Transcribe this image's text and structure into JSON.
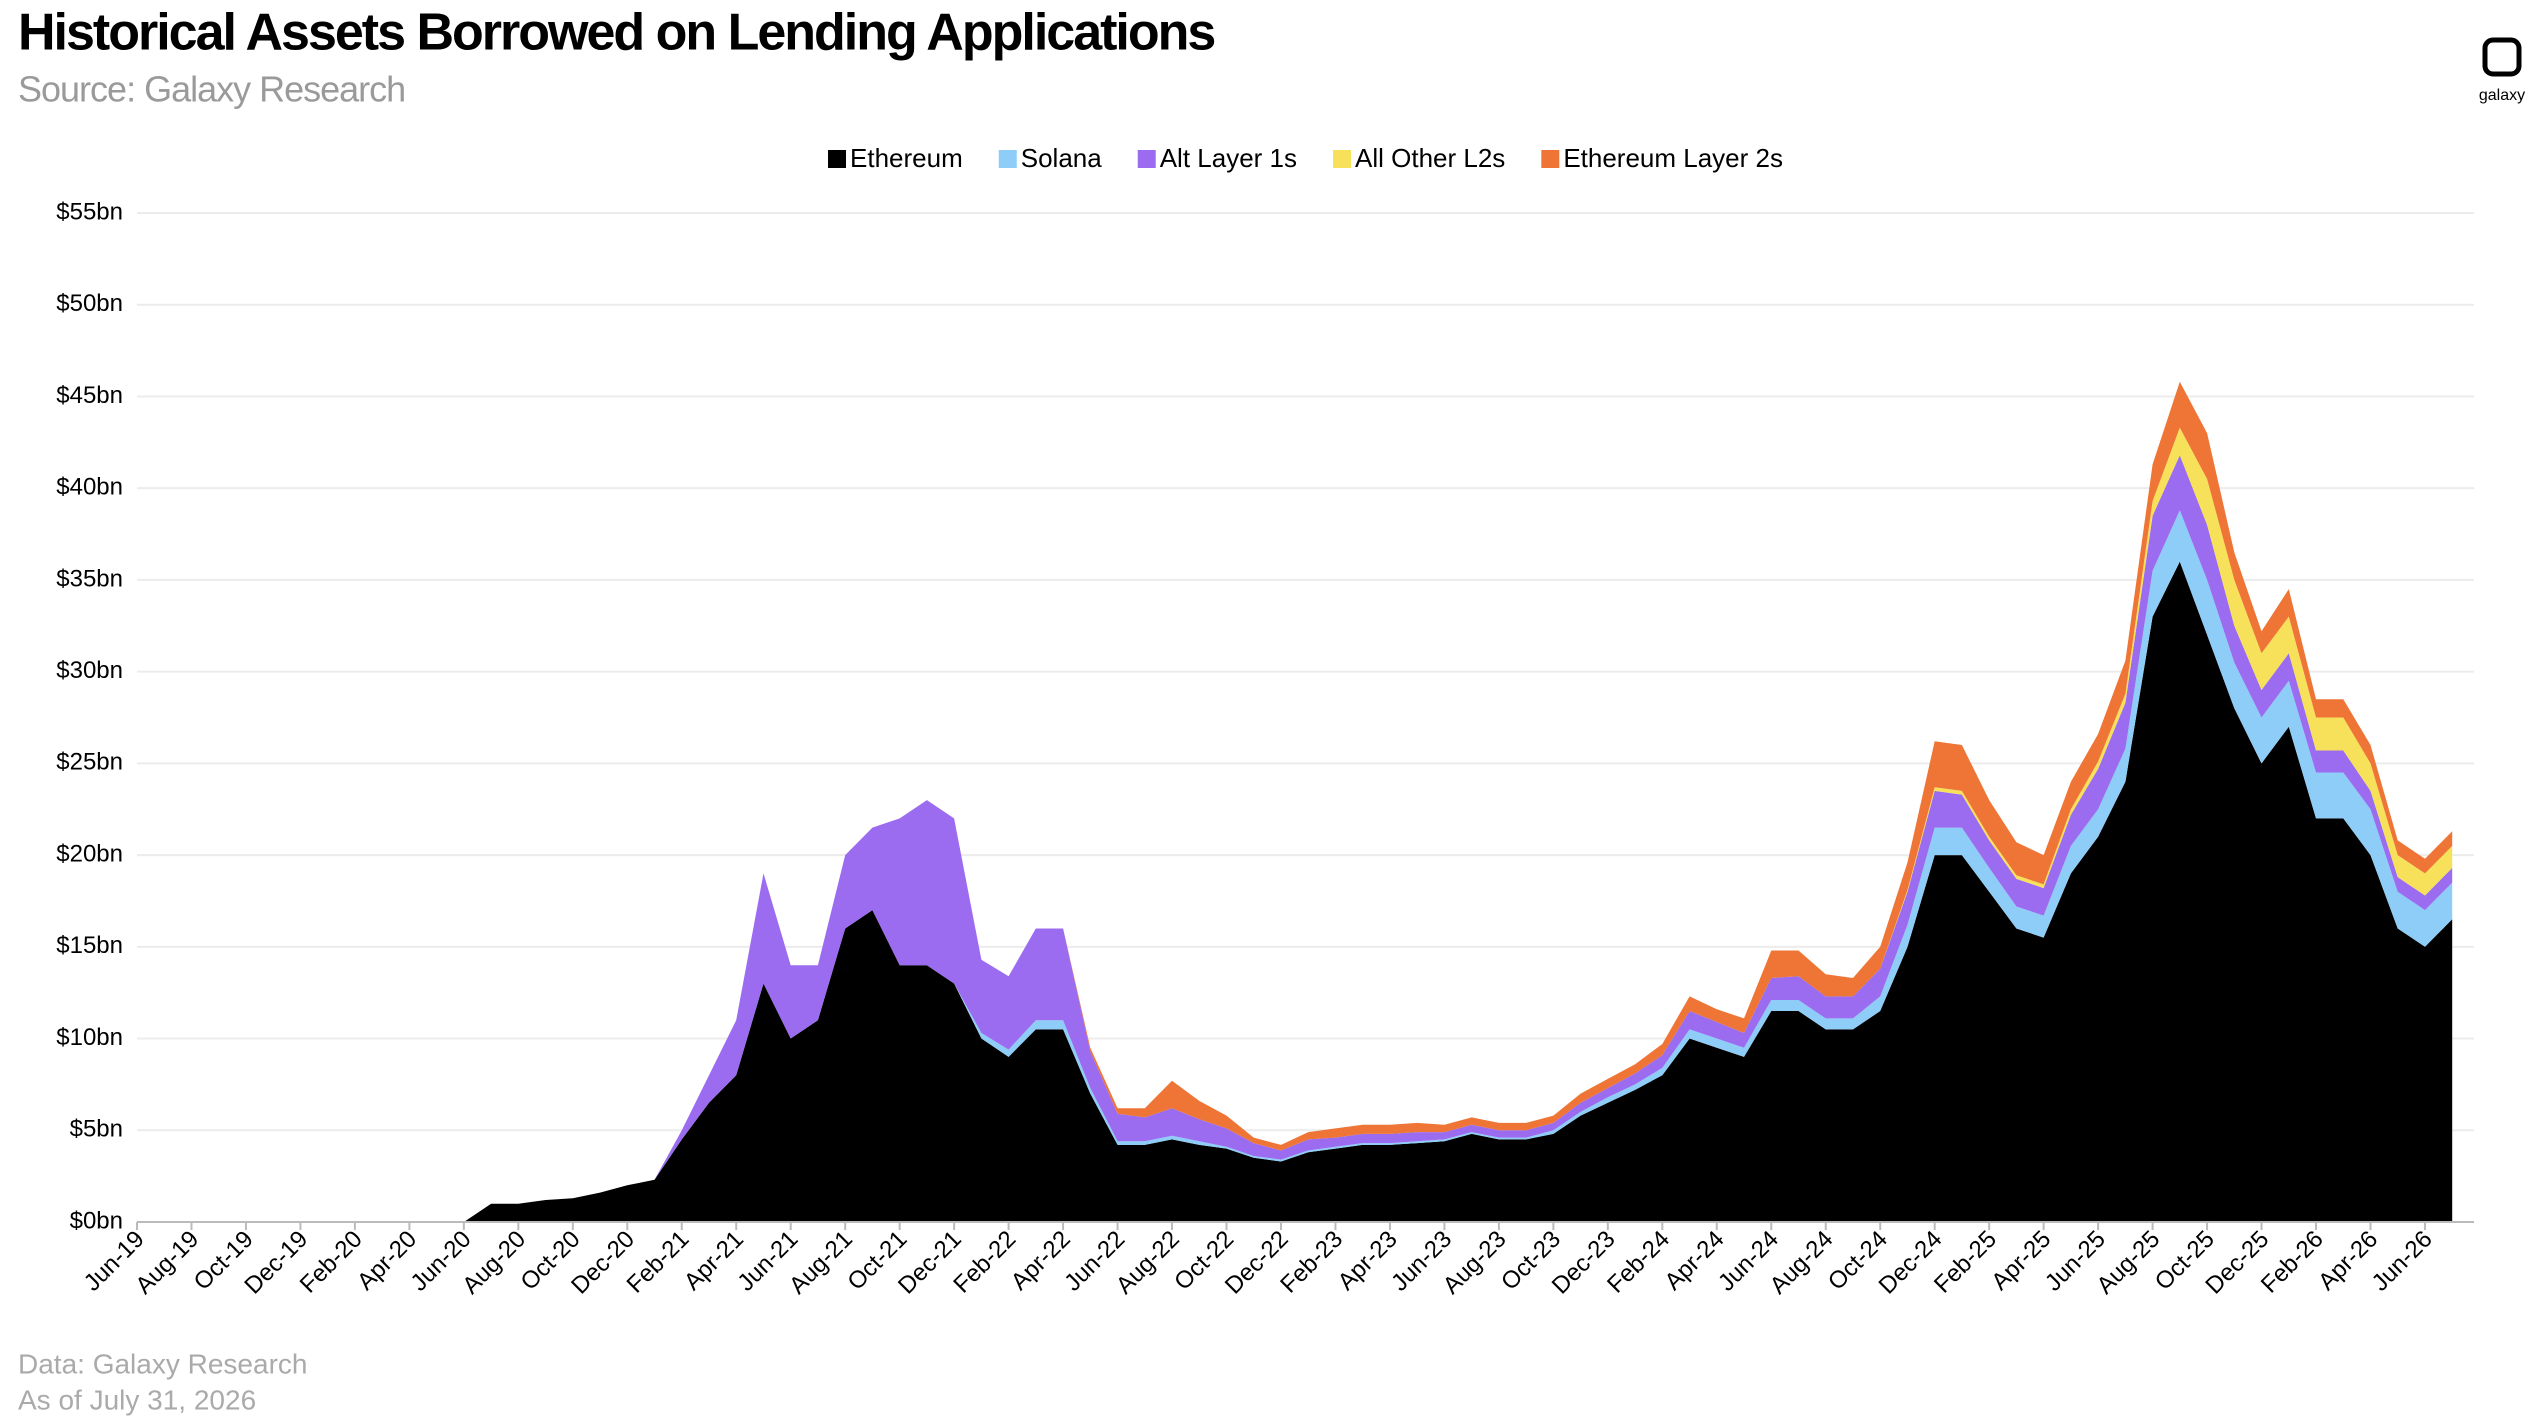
{
  "chart_data": {
    "type": "stacked-area",
    "title": "Historical Assets Borrowed on Lending Applications",
    "subtitle": "Source: Galaxy Research",
    "notes": [
      "Data: Galaxy Research",
      "As of July 31, 2026"
    ],
    "logo": "galaxy",
    "categories": [
      "Jun-19",
      null,
      "Aug-19",
      null,
      "Oct-19",
      null,
      "Dec-19",
      null,
      "Feb-20",
      null,
      "Apr-20",
      null,
      "Jun-20",
      null,
      "Aug-20",
      null,
      "Oct-20",
      null,
      "Dec-20",
      null,
      "Feb-21",
      null,
      "Apr-21",
      null,
      "Jun-21",
      null,
      "Aug-21",
      null,
      "Oct-21",
      null,
      "Dec-21",
      null,
      "Feb-22",
      null,
      "Apr-22",
      null,
      "Jun-22",
      null,
      "Aug-22",
      null,
      "Oct-22",
      null,
      "Dec-22",
      null,
      "Feb-23",
      null,
      "Apr-23",
      null,
      "Jun-23",
      null,
      "Aug-23",
      null,
      "Oct-23",
      null,
      "Dec-23",
      null,
      "Feb-24",
      null,
      "Apr-24",
      null,
      "Jun-24",
      null,
      "Aug-24",
      null,
      "Oct-24",
      null,
      "Dec-24",
      null,
      "Feb-25",
      null,
      "Apr-25",
      null,
      "Jun-25",
      null,
      "Aug-25",
      null,
      "Oct-25",
      null,
      "Dec-25",
      null,
      "Feb-26",
      null,
      "Apr-26",
      null,
      "Jun-26",
      null
    ],
    "series": [
      {
        "name": "Ethereum",
        "color": "#000000",
        "values": [
          0,
          0,
          0,
          0,
          0,
          0,
          0,
          0,
          0,
          0,
          0,
          0,
          0,
          1.0,
          1.0,
          1.2,
          1.3,
          1.6,
          2.0,
          2.3,
          4.5,
          6.5,
          8,
          13,
          10,
          11,
          16,
          17,
          14,
          14,
          13,
          10,
          9,
          10.5,
          10.5,
          7,
          4.2,
          4.2,
          4.5,
          4.2,
          4.0,
          3.5,
          3.3,
          3.8,
          4,
          4.2,
          4.2,
          4.3,
          4.4,
          4.8,
          4.5,
          4.5,
          4.8,
          5.8,
          6.5,
          7.2,
          8,
          10,
          9.5,
          9,
          11.5,
          11.5,
          10.5,
          10.5,
          11.5,
          15,
          20,
          20,
          18,
          16,
          15.5,
          19,
          21,
          24,
          33,
          36,
          32,
          28,
          25,
          27,
          22,
          22,
          20,
          16,
          15,
          16.5
        ]
      },
      {
        "name": "Solana",
        "color": "#8ecdf7",
        "values": [
          0,
          0,
          0,
          0,
          0,
          0,
          0,
          0,
          0,
          0,
          0,
          0,
          0,
          0,
          0,
          0,
          0,
          0,
          0,
          0,
          0,
          0,
          0,
          0,
          0,
          0,
          0,
          0,
          0,
          0,
          0,
          0.3,
          0.4,
          0.5,
          0.5,
          0.3,
          0.2,
          0.2,
          0.2,
          0.2,
          0.1,
          0.1,
          0.1,
          0.1,
          0.1,
          0.1,
          0.1,
          0.1,
          0.1,
          0.1,
          0.1,
          0.1,
          0.2,
          0.2,
          0.3,
          0.3,
          0.4,
          0.5,
          0.5,
          0.5,
          0.6,
          0.6,
          0.6,
          0.6,
          0.8,
          1.2,
          1.5,
          1.5,
          1.3,
          1.2,
          1.2,
          1.5,
          1.5,
          1.8,
          2.5,
          2.8,
          3,
          2.5,
          2.5,
          2.5,
          2.5,
          2.5,
          2.5,
          2,
          2,
          2
        ]
      },
      {
        "name": "Alt Layer 1s",
        "color": "#9b6cf0",
        "values": [
          0,
          0,
          0,
          0,
          0,
          0,
          0,
          0,
          0,
          0,
          0,
          0,
          0,
          0,
          0,
          0,
          0,
          0,
          0,
          0,
          0.5,
          1.5,
          3,
          6,
          4,
          3,
          4,
          4.5,
          8,
          9,
          9,
          4,
          4,
          5,
          5,
          2,
          1.5,
          1.3,
          1.5,
          1.2,
          1.0,
          0.7,
          0.5,
          0.6,
          0.5,
          0.5,
          0.5,
          0.5,
          0.4,
          0.4,
          0.4,
          0.4,
          0.4,
          0.5,
          0.5,
          0.6,
          0.7,
          1,
          0.9,
          0.8,
          1.2,
          1.3,
          1.2,
          1.2,
          1.5,
          1.8,
          2,
          1.8,
          1.5,
          1.5,
          1.5,
          1.7,
          2.2,
          2.5,
          3,
          3,
          3,
          2,
          1.5,
          1.5,
          1.2,
          1.2,
          1.0,
          0.8,
          0.8,
          0.8
        ]
      },
      {
        "name": "All Other L2s",
        "color": "#f7e15a",
        "values": [
          0,
          0,
          0,
          0,
          0,
          0,
          0,
          0,
          0,
          0,
          0,
          0,
          0,
          0,
          0,
          0,
          0,
          0,
          0,
          0,
          0,
          0,
          0,
          0,
          0,
          0,
          0,
          0,
          0,
          0,
          0,
          0,
          0,
          0,
          0,
          0,
          0,
          0,
          0,
          0,
          0,
          0,
          0,
          0,
          0,
          0,
          0,
          0,
          0,
          0,
          0,
          0,
          0,
          0,
          0,
          0,
          0,
          0,
          0,
          0,
          0,
          0,
          0,
          0,
          0,
          0.1,
          0.2,
          0.2,
          0.2,
          0.2,
          0.2,
          0.3,
          0.4,
          0.5,
          0.8,
          1.5,
          2.5,
          2.5,
          2,
          2,
          1.8,
          1.8,
          1.5,
          1.2,
          1.2,
          1.2
        ]
      },
      {
        "name": "Ethereum Layer 2s",
        "color": "#ee7535",
        "values": [
          0,
          0,
          0,
          0,
          0,
          0,
          0,
          0,
          0,
          0,
          0,
          0,
          0,
          0,
          0,
          0,
          0,
          0,
          0,
          0,
          0,
          0,
          0,
          0,
          0,
          0,
          0,
          0,
          0,
          0,
          0,
          0,
          0,
          0,
          0,
          0.2,
          0.3,
          0.5,
          1.5,
          1.0,
          0.7,
          0.3,
          0.3,
          0.4,
          0.5,
          0.5,
          0.5,
          0.5,
          0.4,
          0.4,
          0.4,
          0.4,
          0.4,
          0.5,
          0.5,
          0.5,
          0.6,
          0.8,
          0.7,
          0.8,
          1.5,
          1.4,
          1.2,
          1.0,
          1.2,
          1.5,
          2.5,
          2.5,
          2.0,
          1.8,
          1.6,
          1.5,
          1.5,
          1.8,
          2.0,
          2.5,
          2.5,
          1.5,
          1.2,
          1.5,
          1.0,
          1.0,
          1.0,
          0.8,
          0.8,
          0.8
        ]
      }
    ],
    "ylim": [
      0,
      55
    ],
    "yticks": [
      {
        "value": 0,
        "label": "$0bn"
      },
      {
        "value": 5,
        "label": "$5bn"
      },
      {
        "value": 10,
        "label": "$10bn"
      },
      {
        "value": 15,
        "label": "$15bn"
      },
      {
        "value": 20,
        "label": "$20bn"
      },
      {
        "value": 25,
        "label": "$25bn"
      },
      {
        "value": 30,
        "label": "$30bn"
      },
      {
        "value": 35,
        "label": "$35bn"
      },
      {
        "value": 40,
        "label": "$40bn"
      },
      {
        "value": 45,
        "label": "$45bn"
      },
      {
        "value": 50,
        "label": "$50bn"
      },
      {
        "value": 55,
        "label": "$55bn"
      }
    ],
    "grid": true,
    "legend": "top"
  }
}
